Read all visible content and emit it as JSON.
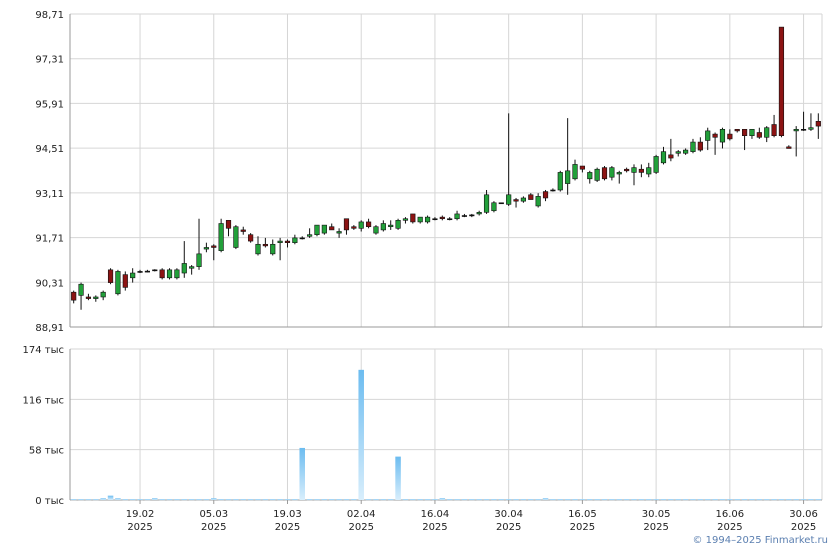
{
  "chart_data": [
    {
      "type": "candlestick",
      "title": "",
      "ylim": [
        88.91,
        98.71
      ],
      "y_ticks": [
        "88,91",
        "90,31",
        "91,71",
        "93,11",
        "94,51",
        "95,91",
        "97,31",
        "98,71"
      ],
      "y_tick_values": [
        88.91,
        90.31,
        91.71,
        93.11,
        94.51,
        95.91,
        97.31,
        98.71
      ],
      "x_ticks": [
        {
          "label1": "19.02",
          "label2": "2025",
          "index": 9
        },
        {
          "label1": "05.03",
          "label2": "2025",
          "index": 19
        },
        {
          "label1": "19.03",
          "label2": "2025",
          "index": 29
        },
        {
          "label1": "02.04",
          "label2": "2025",
          "index": 39
        },
        {
          "label1": "16.04",
          "label2": "2025",
          "index": 49
        },
        {
          "label1": "30.04",
          "label2": "2025",
          "index": 59
        },
        {
          "label1": "16.05",
          "label2": "2025",
          "index": 69
        },
        {
          "label1": "30.05",
          "label2": "2025",
          "index": 79
        },
        {
          "label1": "16.06",
          "label2": "2025",
          "index": 89
        },
        {
          "label1": "30.06",
          "label2": "2025",
          "index": 99
        }
      ],
      "ohlc": [
        [
          90.0,
          90.05,
          89.65,
          89.75
        ],
        [
          89.9,
          90.3,
          89.45,
          90.25
        ],
        [
          89.85,
          89.95,
          89.75,
          89.8
        ],
        [
          89.8,
          89.9,
          89.7,
          89.85
        ],
        [
          89.85,
          90.05,
          89.75,
          90.0
        ],
        [
          90.7,
          90.75,
          90.25,
          90.3
        ],
        [
          89.95,
          90.7,
          89.9,
          90.65
        ],
        [
          90.55,
          90.65,
          90.05,
          90.15
        ],
        [
          90.45,
          90.75,
          90.3,
          90.6
        ],
        [
          90.65,
          90.7,
          90.6,
          90.65
        ],
        [
          90.65,
          90.7,
          90.62,
          90.66
        ],
        [
          90.7,
          90.72,
          90.65,
          90.7
        ],
        [
          90.7,
          90.75,
          90.4,
          90.45
        ],
        [
          90.45,
          90.75,
          90.4,
          90.7
        ],
        [
          90.45,
          90.75,
          90.4,
          90.7
        ],
        [
          90.6,
          91.6,
          90.45,
          90.9
        ],
        [
          90.75,
          90.85,
          90.55,
          90.8
        ],
        [
          90.8,
          92.3,
          90.7,
          91.2
        ],
        [
          91.35,
          91.55,
          91.25,
          91.4
        ],
        [
          91.45,
          91.5,
          91.0,
          91.4
        ],
        [
          91.3,
          92.3,
          91.25,
          92.15
        ],
        [
          92.25,
          92.25,
          91.75,
          92.0
        ],
        [
          91.4,
          92.1,
          91.35,
          92.05
        ],
        [
          91.95,
          92.05,
          91.8,
          91.9
        ],
        [
          91.8,
          91.85,
          91.55,
          91.6
        ],
        [
          91.2,
          91.75,
          91.15,
          91.5
        ],
        [
          91.5,
          91.7,
          91.4,
          91.45
        ],
        [
          91.2,
          91.65,
          91.15,
          91.5
        ],
        [
          91.55,
          91.7,
          91.0,
          91.6
        ],
        [
          91.6,
          91.65,
          91.4,
          91.55
        ],
        [
          91.55,
          91.8,
          91.5,
          91.7
        ],
        [
          91.7,
          91.75,
          91.65,
          91.7
        ],
        [
          91.75,
          92.0,
          91.7,
          91.8
        ],
        [
          91.8,
          92.1,
          91.75,
          92.1
        ],
        [
          91.85,
          92.1,
          91.8,
          92.1
        ],
        [
          92.05,
          92.15,
          91.95,
          91.95
        ],
        [
          91.85,
          92.0,
          91.7,
          91.9
        ],
        [
          92.3,
          92.3,
          91.8,
          91.95
        ],
        [
          92.05,
          92.1,
          91.95,
          92.0
        ],
        [
          92.0,
          92.25,
          91.9,
          92.2
        ],
        [
          92.2,
          92.3,
          92.0,
          92.05
        ],
        [
          91.85,
          92.1,
          91.8,
          92.05
        ],
        [
          91.95,
          92.25,
          91.9,
          92.15
        ],
        [
          92.05,
          92.25,
          91.95,
          92.1
        ],
        [
          92.0,
          92.3,
          91.95,
          92.25
        ],
        [
          92.25,
          92.35,
          92.15,
          92.3
        ],
        [
          92.45,
          92.45,
          92.15,
          92.2
        ],
        [
          92.2,
          92.35,
          92.15,
          92.35
        ],
        [
          92.2,
          92.4,
          92.15,
          92.35
        ],
        [
          92.3,
          92.35,
          92.25,
          92.3
        ],
        [
          92.35,
          92.4,
          92.25,
          92.3
        ],
        [
          92.3,
          92.35,
          92.25,
          92.3
        ],
        [
          92.3,
          92.55,
          92.25,
          92.45
        ],
        [
          92.4,
          92.45,
          92.35,
          92.4
        ],
        [
          92.4,
          92.45,
          92.35,
          92.42
        ],
        [
          92.45,
          92.55,
          92.4,
          92.5
        ],
        [
          92.5,
          93.2,
          92.45,
          93.05
        ],
        [
          92.55,
          92.85,
          92.5,
          92.8
        ],
        [
          92.8,
          92.8,
          92.8,
          92.8
        ],
        [
          92.75,
          95.6,
          92.7,
          93.05
        ],
        [
          92.9,
          92.95,
          92.65,
          92.85
        ],
        [
          92.85,
          93.0,
          92.8,
          92.95
        ],
        [
          93.05,
          93.1,
          92.95,
          92.9
        ],
        [
          92.7,
          93.1,
          92.65,
          93.0
        ],
        [
          93.15,
          93.2,
          92.85,
          92.95
        ],
        [
          93.2,
          93.25,
          93.15,
          93.2
        ],
        [
          93.2,
          93.8,
          93.15,
          93.75
        ],
        [
          93.4,
          95.45,
          93.05,
          93.8
        ],
        [
          93.55,
          94.15,
          93.5,
          94.0
        ],
        [
          93.95,
          93.95,
          93.75,
          93.85
        ],
        [
          93.55,
          93.8,
          93.4,
          93.75
        ],
        [
          93.5,
          93.9,
          93.45,
          93.85
        ],
        [
          93.9,
          93.95,
          93.5,
          93.55
        ],
        [
          93.6,
          93.95,
          93.5,
          93.9
        ],
        [
          93.7,
          93.8,
          93.4,
          93.75
        ],
        [
          93.85,
          93.9,
          93.75,
          93.8
        ],
        [
          93.75,
          94.0,
          93.35,
          93.9
        ],
        [
          93.85,
          94.0,
          93.6,
          93.75
        ],
        [
          93.7,
          94.05,
          93.6,
          93.9
        ],
        [
          93.75,
          94.3,
          93.7,
          94.25
        ],
        [
          94.05,
          94.55,
          94.0,
          94.4
        ],
        [
          94.3,
          94.8,
          94.1,
          94.2
        ],
        [
          94.35,
          94.45,
          94.25,
          94.4
        ],
        [
          94.35,
          94.5,
          94.3,
          94.45
        ],
        [
          94.4,
          94.8,
          94.35,
          94.7
        ],
        [
          94.7,
          94.85,
          94.4,
          94.45
        ],
        [
          94.75,
          95.15,
          94.45,
          95.05
        ],
        [
          94.95,
          95.0,
          94.3,
          94.85
        ],
        [
          94.7,
          95.15,
          94.5,
          95.1
        ],
        [
          94.95,
          95.1,
          94.75,
          94.8
        ],
        [
          95.1,
          95.1,
          95.0,
          95.05
        ],
        [
          95.1,
          95.1,
          94.45,
          94.9
        ],
        [
          94.9,
          95.1,
          94.8,
          95.1
        ],
        [
          95.0,
          95.15,
          94.8,
          94.85
        ],
        [
          94.85,
          95.2,
          94.7,
          95.15
        ],
        [
          95.25,
          95.55,
          94.85,
          94.9
        ],
        [
          98.3,
          98.3,
          94.85,
          94.9
        ],
        [
          94.55,
          94.6,
          94.5,
          94.5
        ],
        [
          95.05,
          95.2,
          94.25,
          95.1
        ],
        [
          95.1,
          95.65,
          95.05,
          95.1
        ],
        [
          95.1,
          95.6,
          95.05,
          95.15
        ],
        [
          95.35,
          95.6,
          94.8,
          95.2
        ]
      ],
      "volume": {
        "ylim": [
          0,
          174
        ],
        "y_ticks": [
          "0 тыс",
          "58 тыс",
          "116 тыс",
          "174 тыс"
        ],
        "y_tick_values": [
          0,
          58,
          116,
          174
        ],
        "values": [
          1,
          1,
          1,
          1,
          2,
          5,
          2,
          1,
          1,
          1,
          1,
          1,
          1,
          1,
          1,
          1,
          1,
          1,
          1,
          1,
          1,
          1,
          1,
          1,
          1,
          1,
          1,
          1,
          1,
          1,
          1,
          1,
          1,
          1,
          1,
          1,
          1,
          1,
          1,
          1,
          1,
          1,
          1,
          1,
          1,
          1,
          1,
          1,
          1,
          1,
          1,
          1,
          1,
          1,
          1,
          1,
          1,
          1,
          1,
          1,
          1,
          1,
          1,
          1,
          1,
          1,
          1,
          1,
          1,
          1,
          1,
          1,
          1,
          1,
          1,
          1,
          1,
          1,
          1,
          1,
          1,
          1,
          1,
          1,
          1,
          1,
          1,
          1,
          1,
          1,
          1,
          1,
          1,
          1,
          1,
          1,
          1,
          1,
          1,
          1,
          1,
          1
        ],
        "spikes": [
          {
            "index": 31,
            "value": 60
          },
          {
            "index": 39,
            "value": 150
          },
          {
            "index": 44,
            "value": 50
          },
          {
            "index": 11,
            "value": 2
          },
          {
            "index": 19,
            "value": 2
          },
          {
            "index": 50,
            "value": 2
          },
          {
            "index": 64,
            "value": 2
          }
        ]
      },
      "colors": {
        "up_fill": "#22a03a",
        "down_fill": "#8c1313",
        "outline": "#111111",
        "grid": "#d6d6d6",
        "axis": "#9a9a9a",
        "vol_top": "#6cbcf0",
        "vol_bottom": "#d8eefc"
      }
    }
  ],
  "footer": {
    "copyright": "© 1994–2025 Finmarket.ru"
  }
}
